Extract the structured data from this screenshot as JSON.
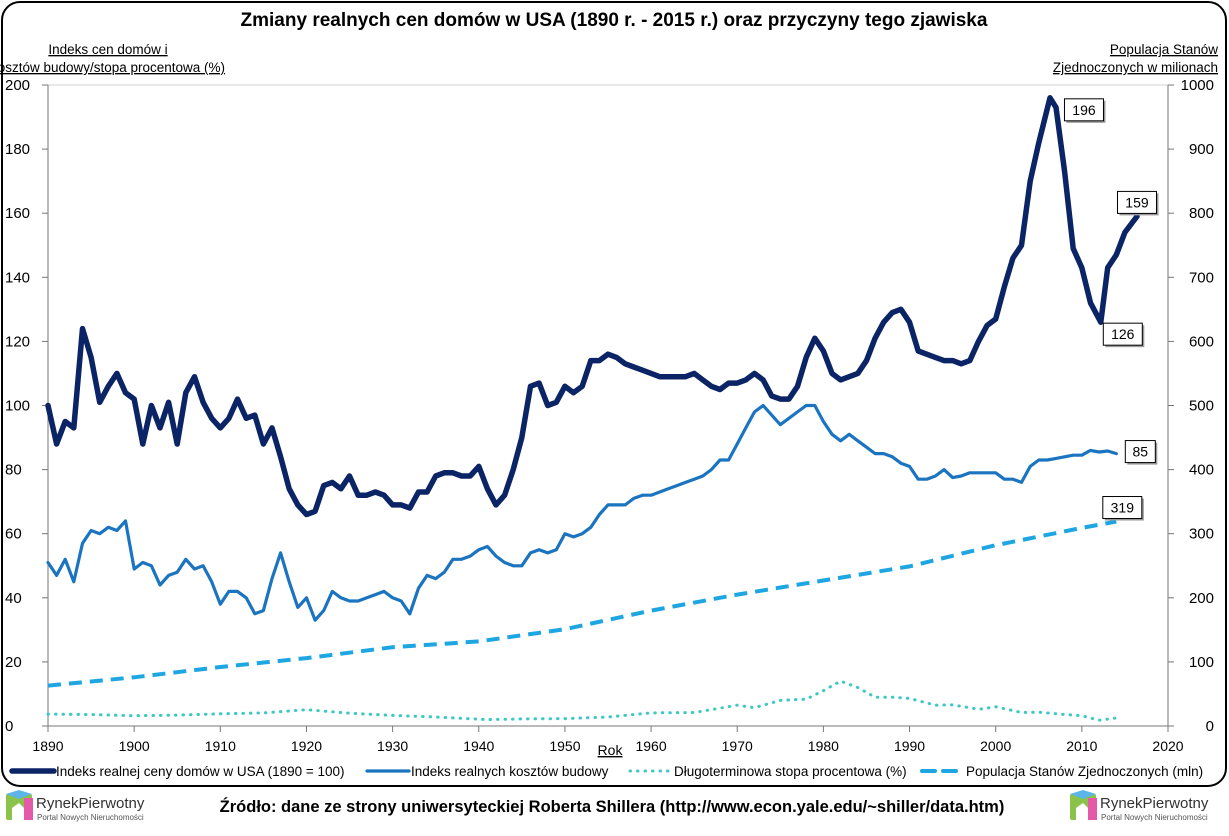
{
  "chart_data": {
    "type": "line",
    "title": "Zmiany realnych cen domów w USA (1890 r. - 2015 r.) oraz przyczyny tego zjawiska",
    "ylabel_left": "Indeks cen domów i kosztów budowy/stopa procentowa (%)",
    "ylabel_right": "Populacja Stanów Zjednoczonych w milionach",
    "xlabel": "Rok",
    "xlim": [
      1890,
      2020
    ],
    "ylim_left": [
      0,
      200
    ],
    "ylim_right": [
      0,
      1000
    ],
    "x_ticks": [
      "1890",
      "1900",
      "1910",
      "1920",
      "1930",
      "1940",
      "1950",
      "1960",
      "1970",
      "1980",
      "1990",
      "2000",
      "2010",
      "2020"
    ],
    "y_ticks_left": [
      "0",
      "20",
      "40",
      "60",
      "80",
      "100",
      "120",
      "140",
      "160",
      "180",
      "200"
    ],
    "y_ticks_right": [
      "0",
      "100",
      "200",
      "300",
      "400",
      "500",
      "600",
      "700",
      "800",
      "900",
      "1000"
    ],
    "grid": false,
    "legend_placement": "bottom",
    "series": [
      {
        "name": "Indeks realnej ceny domów w USA (1890 = 100)",
        "axis": "left",
        "color": "#0b2466",
        "style": "solid-thick",
        "x": [
          1890,
          1891,
          1892,
          1893,
          1894,
          1895,
          1896,
          1897,
          1898,
          1899,
          1900,
          1901,
          1902,
          1903,
          1904,
          1905,
          1906,
          1907,
          1908,
          1909,
          1910,
          1911,
          1912,
          1913,
          1914,
          1915,
          1916,
          1917,
          1918,
          1919,
          1920,
          1921,
          1922,
          1923,
          1924,
          1925,
          1926,
          1927,
          1928,
          1929,
          1930,
          1931,
          1932,
          1933,
          1934,
          1935,
          1936,
          1937,
          1938,
          1939,
          1940,
          1941,
          1942,
          1943,
          1944,
          1945,
          1946,
          1947,
          1948,
          1949,
          1950,
          1951,
          1952,
          1953,
          1954,
          1955,
          1956,
          1957,
          1958,
          1959,
          1960,
          1961,
          1962,
          1963,
          1964,
          1965,
          1966,
          1967,
          1968,
          1969,
          1970,
          1971,
          1972,
          1973,
          1974,
          1975,
          1976,
          1977,
          1978,
          1979,
          1980,
          1981,
          1982,
          1983,
          1984,
          1985,
          1986,
          1987,
          1988,
          1989,
          1990,
          1991,
          1992,
          1993,
          1994,
          1995,
          1996,
          1997,
          1998,
          1999,
          2000,
          2001,
          2002,
          2003,
          2004,
          2005,
          2006.3,
          2007,
          2008,
          2009,
          2010,
          2011,
          2012.2,
          2013,
          2014,
          2015,
          2016.4
        ],
        "values": [
          100,
          88,
          95,
          93,
          124,
          115,
          101,
          106,
          110,
          104,
          102,
          88,
          100,
          93,
          101,
          88,
          104,
          109,
          101,
          96,
          93,
          96,
          102,
          96,
          97,
          88,
          93,
          84,
          74,
          69,
          66,
          67,
          75,
          76,
          74,
          78,
          72,
          72,
          73,
          72,
          69,
          69,
          68,
          73,
          73,
          78,
          79,
          79,
          78,
          78,
          81,
          74,
          69,
          72,
          80,
          90,
          106,
          107,
          100,
          101,
          106,
          104,
          106,
          114,
          114,
          116,
          115,
          113,
          112,
          111,
          110,
          109,
          109,
          109,
          109,
          110,
          108,
          106,
          105,
          107,
          107,
          108,
          110,
          108,
          103,
          102,
          102,
          106,
          115,
          121,
          117,
          110,
          108,
          109,
          110,
          114,
          121,
          126,
          129,
          130,
          126,
          117,
          116,
          115,
          114,
          114,
          113,
          114,
          120,
          125,
          127,
          137,
          146,
          150,
          170,
          182,
          196,
          193,
          173,
          149,
          143,
          132,
          126,
          143,
          147,
          154,
          159
        ]
      },
      {
        "name": "Indeks realnych kosztów budowy",
        "axis": "left",
        "color": "#1b74c0",
        "style": "solid",
        "x": [
          1890,
          1891,
          1892,
          1893,
          1894,
          1895,
          1896,
          1897,
          1898,
          1899,
          1900,
          1901,
          1902,
          1903,
          1904,
          1905,
          1906,
          1907,
          1908,
          1909,
          1910,
          1911,
          1912,
          1913,
          1914,
          1915,
          1916,
          1917,
          1918,
          1919,
          1920,
          1921,
          1922,
          1923,
          1924,
          1925,
          1926,
          1927,
          1928,
          1929,
          1930,
          1931,
          1932,
          1933,
          1934,
          1935,
          1936,
          1937,
          1938,
          1939,
          1940,
          1941,
          1942,
          1943,
          1944,
          1945,
          1946,
          1947,
          1948,
          1949,
          1950,
          1951,
          1952,
          1953,
          1954,
          1955,
          1956,
          1957,
          1958,
          1959,
          1960,
          1961,
          1962,
          1963,
          1964,
          1965,
          1966,
          1967,
          1968,
          1969,
          1970,
          1971,
          1972,
          1973,
          1974,
          1975,
          1976,
          1977,
          1978,
          1979,
          1980,
          1981,
          1982,
          1983,
          1984,
          1985,
          1986,
          1987,
          1988,
          1989,
          1990,
          1991,
          1992,
          1993,
          1994,
          1995,
          1996,
          1997,
          1998,
          1999,
          2000,
          2001,
          2002,
          2003,
          2004,
          2005,
          2006,
          2007,
          2008,
          2009,
          2010,
          2011,
          2012,
          2013,
          2014
        ],
        "values": [
          51,
          47,
          52,
          45,
          57,
          61,
          60,
          62,
          61,
          64,
          49,
          51,
          50,
          44,
          47,
          48,
          52,
          49,
          50,
          45,
          38,
          42,
          42,
          40,
          35,
          36,
          46,
          54,
          45,
          37,
          40,
          33,
          36,
          42,
          40,
          39,
          39,
          40,
          41,
          42,
          40,
          39,
          35,
          43,
          47,
          46,
          48,
          52,
          52,
          53,
          55,
          56,
          53,
          51,
          50,
          50,
          54,
          55,
          54,
          55,
          60,
          59,
          60,
          62,
          66,
          69,
          69,
          69,
          71,
          72,
          72,
          73,
          74,
          75,
          76,
          77,
          78,
          80,
          83,
          83,
          88,
          93,
          98,
          100,
          97,
          94,
          96,
          98,
          100,
          100,
          95,
          91,
          89,
          91,
          89,
          87,
          85,
          85,
          84,
          82,
          81,
          77,
          77,
          78,
          80,
          77.5,
          78,
          79,
          79,
          79,
          79,
          77,
          77,
          76,
          81,
          83,
          83,
          83.5,
          84,
          84.5,
          84.5,
          86,
          85.5,
          85.8,
          85
        ]
      },
      {
        "name": "Długoterminowa stopa procentowa (%)",
        "axis": "left",
        "color": "#3ec8c4",
        "style": "dotted",
        "x": [
          1890,
          1895,
          1900,
          1905,
          1910,
          1915,
          1920,
          1925,
          1930,
          1935,
          1941,
          1945,
          1950,
          1955,
          1958,
          1960,
          1965,
          1970,
          1972,
          1975,
          1978,
          1980,
          1982,
          1984,
          1986,
          1988,
          1990,
          1993,
          1995,
          1998,
          2000,
          2003,
          2005,
          2008,
          2010,
          2012,
          2014
        ],
        "values": [
          3.7,
          3.6,
          3.2,
          3.4,
          3.8,
          4.1,
          5.1,
          4.0,
          3.3,
          2.8,
          2.0,
          2.2,
          2.3,
          2.8,
          3.6,
          4.1,
          4.2,
          6.5,
          5.7,
          8,
          8.4,
          11,
          14,
          12,
          9,
          9,
          8.6,
          6.5,
          6.6,
          5.2,
          6,
          4.2,
          4.3,
          3.6,
          3.2,
          1.8,
          2.5
        ]
      },
      {
        "name": "Populacja Stanów Zjednoczonych (mln)",
        "axis": "right",
        "color": "#1ea6e2",
        "style": "dashed",
        "x": [
          1890,
          1900,
          1910,
          1920,
          1930,
          1940,
          1950,
          1960,
          1970,
          1980,
          1990,
          2000,
          2010,
          2014
        ],
        "values": [
          63,
          76,
          92,
          106,
          123,
          132,
          151,
          180,
          205,
          227,
          249,
          282,
          309,
          319
        ]
      }
    ],
    "annotations": [
      {
        "text": "196",
        "series": 0,
        "x": 2006.3,
        "value": 196
      },
      {
        "text": "159",
        "series": 0,
        "x": 2016.4,
        "value": 159
      },
      {
        "text": "126",
        "series": 0,
        "x": 2012.2,
        "value": 126
      },
      {
        "text": "85",
        "series": 1,
        "x": 2014,
        "value": 85
      },
      {
        "text": "319",
        "series": 3,
        "x": 2014,
        "value": 319
      }
    ]
  },
  "footer": {
    "source": "Źródło: dane ze strony uniwersyteckiej Roberta Shillera (http://www.econ.yale.edu/~shiller/data.htm)",
    "logo_name": "RynekPierwotny",
    "logo_tagline": "Portal Nowych Nieruchomości"
  }
}
